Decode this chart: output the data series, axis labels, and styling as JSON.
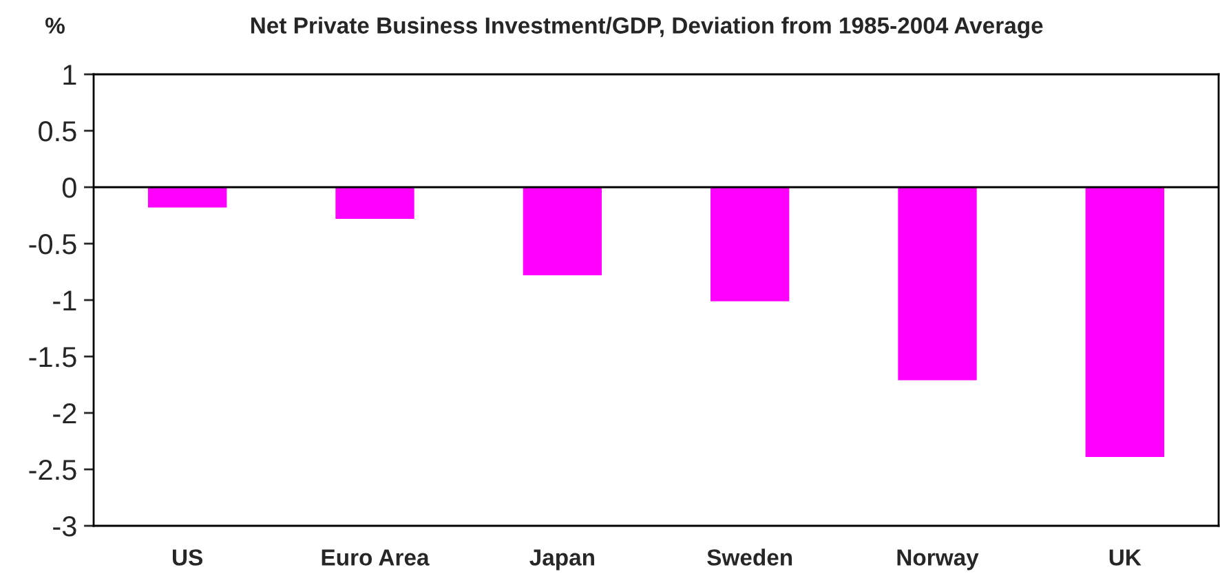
{
  "chart_data": {
    "type": "bar",
    "title": "Net Private Business Investment/GDP, Deviation from 1985-2004 Average",
    "ylabel": "%",
    "categories": [
      "US",
      "Euro Area",
      "Japan",
      "Sweden",
      "Norway",
      "UK"
    ],
    "values": [
      -0.18,
      -0.28,
      -0.78,
      -1.01,
      -1.71,
      -2.39
    ],
    "color": "#ff00ff",
    "ylim": [
      -3,
      1
    ],
    "yticks": [
      {
        "value": 1,
        "label": "1"
      },
      {
        "value": 0.5,
        "label": "0.5"
      },
      {
        "value": 0,
        "label": "0"
      },
      {
        "value": -0.5,
        "label": "-0.5"
      },
      {
        "value": -1,
        "label": "-1"
      },
      {
        "value": -1.5,
        "label": "-1.5"
      },
      {
        "value": -2,
        "label": "-2"
      },
      {
        "value": -2.5,
        "label": "-2.5"
      },
      {
        "value": -3,
        "label": "-3"
      }
    ],
    "ref_lines": [
      {
        "axis": "y",
        "value": 0,
        "color": "#000000"
      }
    ],
    "grid": false,
    "legend": false
  }
}
